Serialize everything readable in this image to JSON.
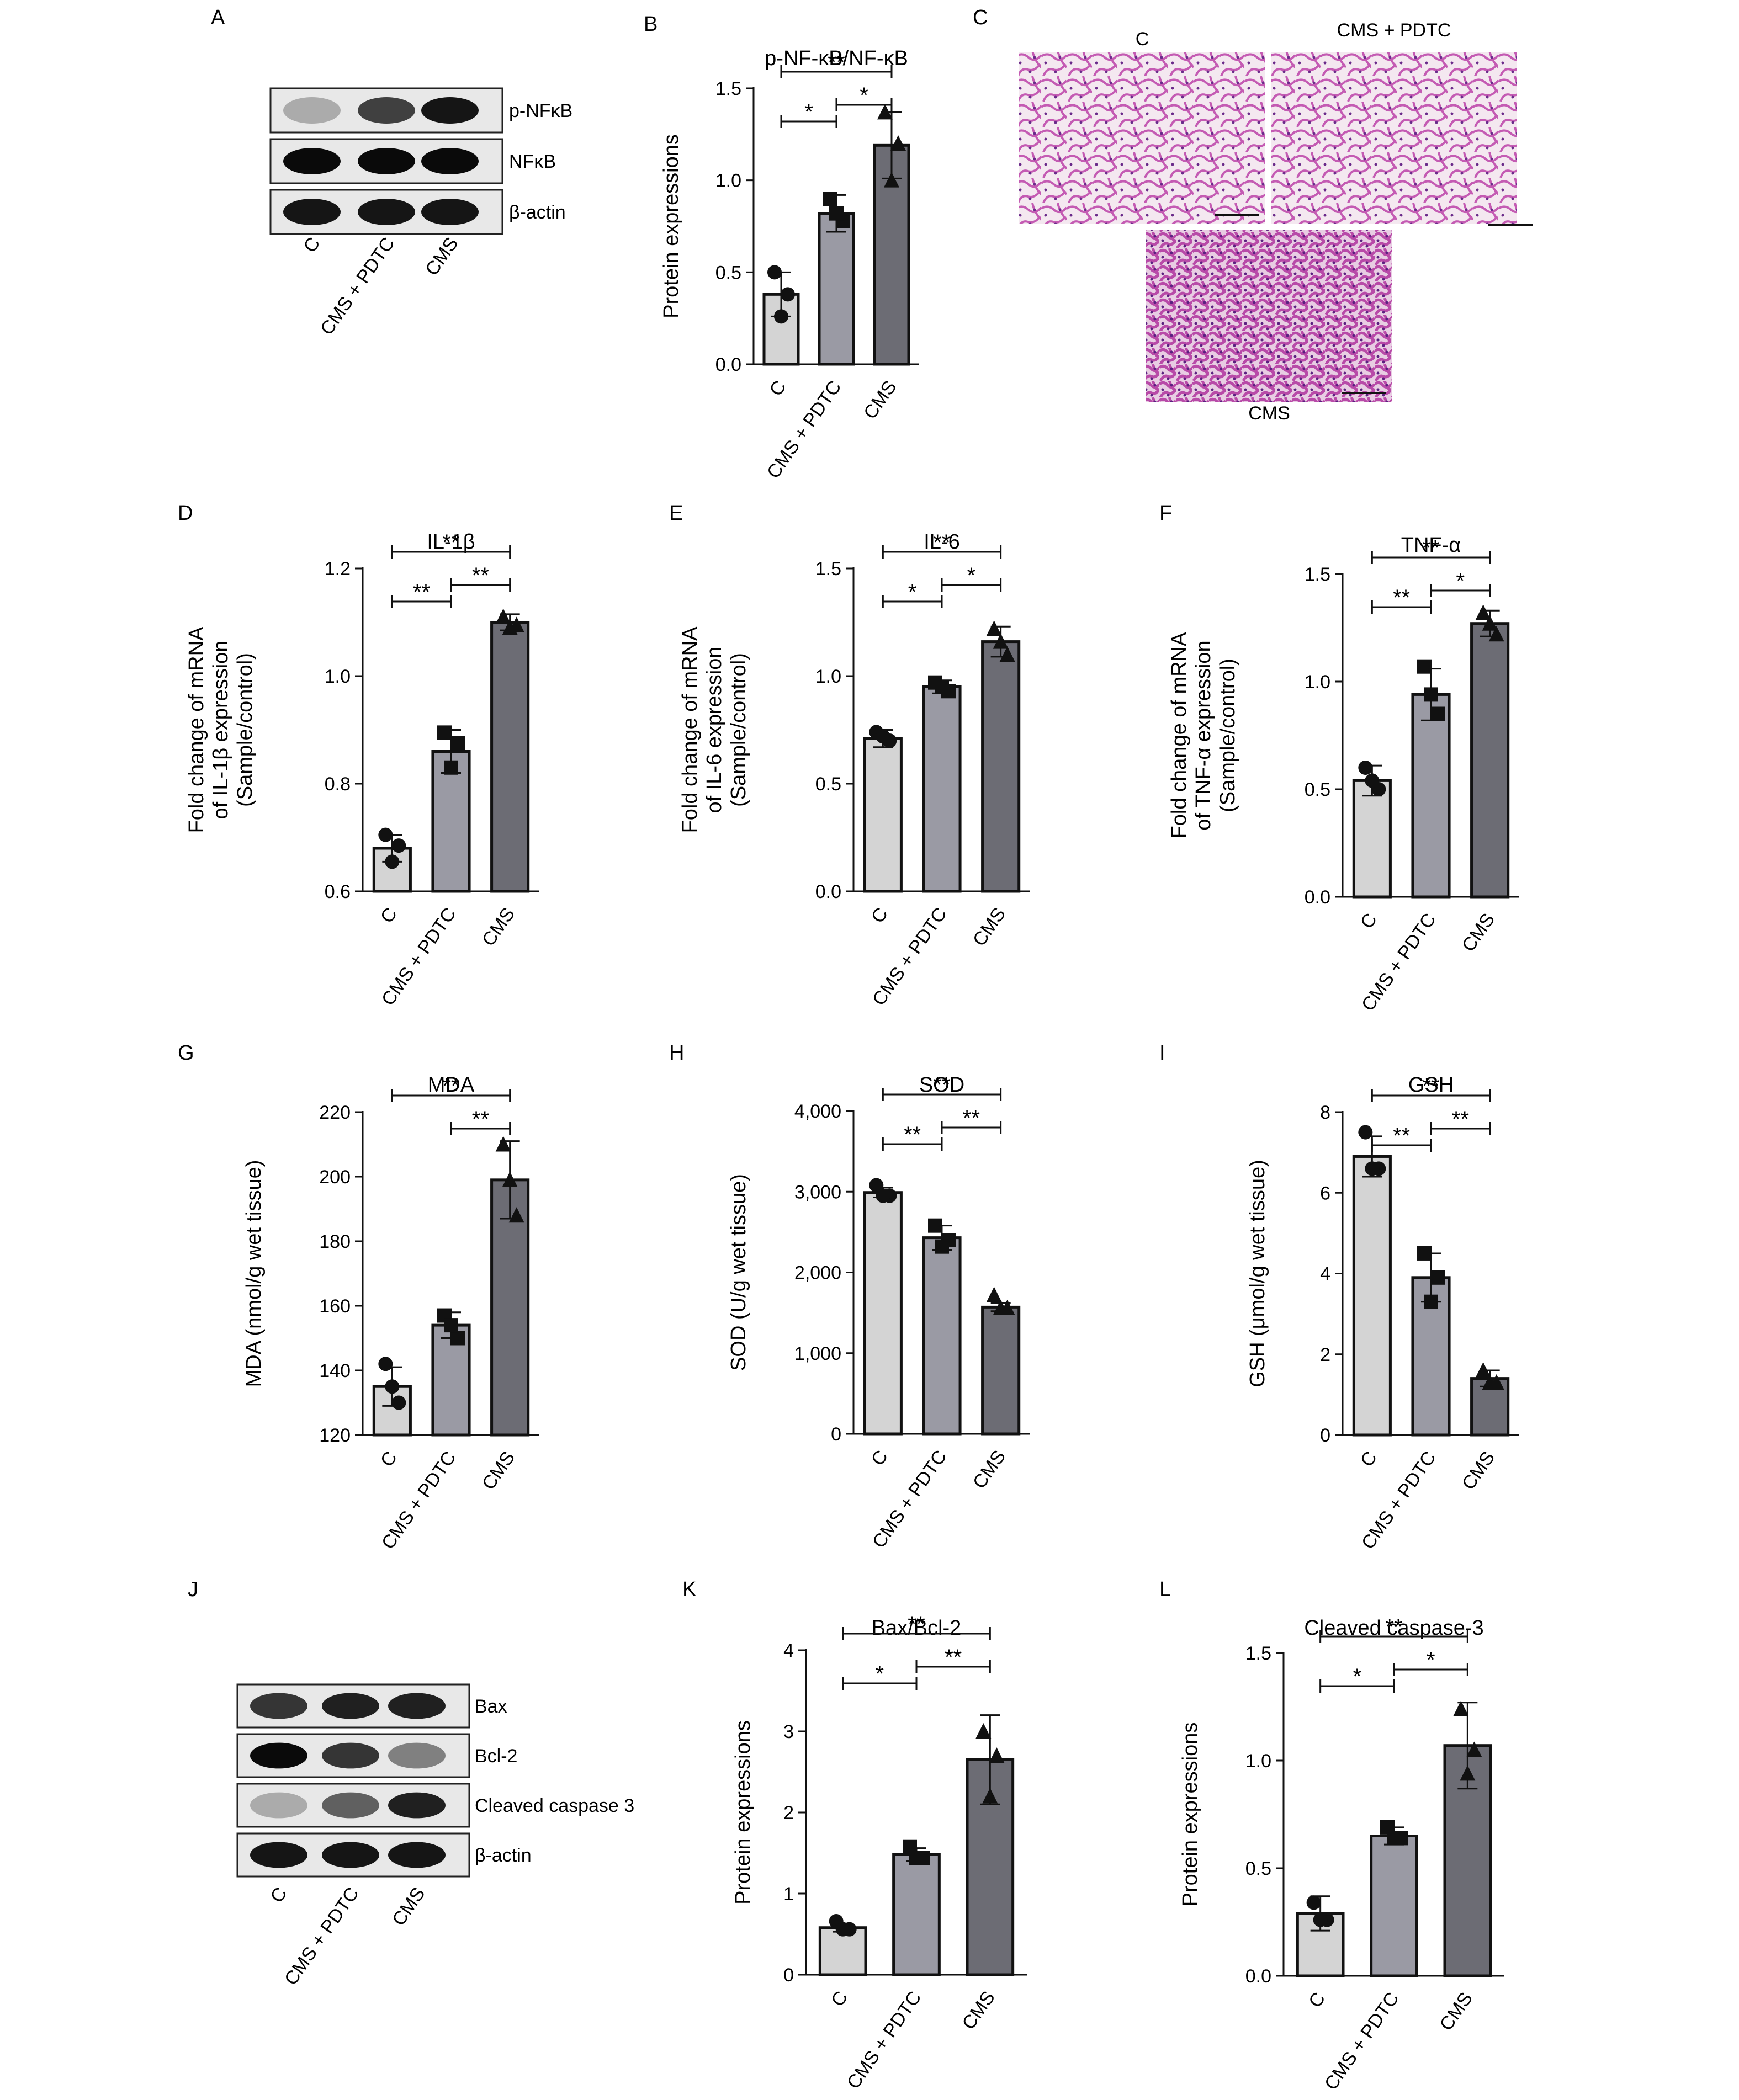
{
  "panel_letters": {
    "A": "A",
    "B": "B",
    "C": "C",
    "D": "D",
    "E": "E",
    "F": "F",
    "G": "G",
    "H": "H",
    "I": "I",
    "J": "J",
    "K": "K",
    "L": "L"
  },
  "blot_A": {
    "bands": [
      "p-NFκB",
      "NFκB",
      "β-actin"
    ],
    "lanes": [
      "C",
      "CMS + PDTC",
      "CMS"
    ],
    "intensity": [
      [
        0.25,
        0.75,
        0.95
      ],
      [
        1.0,
        1.0,
        1.0
      ],
      [
        0.95,
        0.95,
        0.95
      ]
    ]
  },
  "blot_J": {
    "bands": [
      "Bax",
      "Bcl-2",
      "Cleaved caspase 3",
      "β-actin"
    ],
    "lanes": [
      "C",
      "CMS + PDTC",
      "CMS"
    ],
    "intensity": [
      [
        0.8,
        0.9,
        0.9
      ],
      [
        1.0,
        0.8,
        0.45
      ],
      [
        0.25,
        0.6,
        0.9
      ],
      [
        0.95,
        0.95,
        0.95
      ]
    ]
  },
  "histology": {
    "labels": [
      "C",
      "CMS + PDTC",
      "CMS"
    ],
    "tissue_color": "#c65bb5",
    "background_color": "#f2e4ee"
  },
  "colors": {
    "bar_c": "#d4d4d4",
    "bar_pdtc": "#9a9aa4",
    "bar_cms": "#6c6c74",
    "outline": "#111111"
  },
  "chart_data": [
    {
      "id": "B",
      "type": "bar",
      "title": "p-NF-κB/NF-κB",
      "ylabel": "Protein expressions",
      "categories": [
        "C",
        "CMS + PDTC",
        "CMS"
      ],
      "values": [
        0.38,
        0.82,
        1.19
      ],
      "errors": [
        0.12,
        0.1,
        0.18
      ],
      "ylim": [
        0,
        1.5
      ],
      "yticks": [
        "0.0",
        "0.5",
        "1.0",
        "1.5"
      ],
      "points": [
        [
          0.5,
          0.38,
          0.26
        ],
        [
          0.9,
          0.78,
          0.82
        ],
        [
          1.37,
          1.2,
          1.0
        ]
      ],
      "sig": [
        {
          "from": 0,
          "to": 1,
          "label": "*"
        },
        {
          "from": 1,
          "to": 2,
          "label": "*"
        },
        {
          "from": 0,
          "to": 2,
          "label": "**"
        }
      ]
    },
    {
      "id": "D",
      "type": "bar",
      "title": "IL-1β",
      "ylabel": [
        "Fold change of mRNA",
        "of IL-1β expression",
        "(Sample/control)"
      ],
      "categories": [
        "C",
        "CMS + PDTC",
        "CMS"
      ],
      "values": [
        0.68,
        0.86,
        1.1
      ],
      "errors": [
        0.025,
        0.04,
        0.015
      ],
      "ylim": [
        0.6,
        1.2
      ],
      "yticks": [
        "0.6",
        "0.8",
        "1.0",
        "1.2"
      ],
      "points": [
        [
          0.705,
          0.685,
          0.655
        ],
        [
          0.895,
          0.875,
          0.83
        ],
        [
          1.11,
          1.095,
          1.09
        ]
      ],
      "sig": [
        {
          "from": 0,
          "to": 1,
          "label": "**"
        },
        {
          "from": 1,
          "to": 2,
          "label": "**"
        },
        {
          "from": 0,
          "to": 2,
          "label": "**"
        }
      ]
    },
    {
      "id": "E",
      "type": "bar",
      "title": "IL-6",
      "ylabel": [
        "Fold change of mRNA",
        "of IL-6 expression",
        "(Sample/control)"
      ],
      "categories": [
        "C",
        "CMS + PDTC",
        "CMS"
      ],
      "values": [
        0.71,
        0.95,
        1.16
      ],
      "errors": [
        0.04,
        0.03,
        0.07
      ],
      "ylim": [
        0,
        1.5
      ],
      "yticks": [
        "0.0",
        "0.5",
        "1.0",
        "1.5"
      ],
      "points": [
        [
          0.74,
          0.7,
          0.72
        ],
        [
          0.97,
          0.93,
          0.95
        ],
        [
          1.22,
          1.1,
          1.16
        ]
      ],
      "sig": [
        {
          "from": 0,
          "to": 1,
          "label": "*"
        },
        {
          "from": 1,
          "to": 2,
          "label": "*"
        },
        {
          "from": 0,
          "to": 2,
          "label": "**"
        }
      ]
    },
    {
      "id": "F",
      "type": "bar",
      "title": "TNF-α",
      "ylabel": [
        "Fold change of mRNA",
        "of TNF-α expression",
        "(Sample/control)"
      ],
      "categories": [
        "C",
        "CMS + PDTC",
        "CMS"
      ],
      "values": [
        0.54,
        0.94,
        1.27
      ],
      "errors": [
        0.07,
        0.12,
        0.06
      ],
      "ylim": [
        0,
        1.5
      ],
      "yticks": [
        "0.0",
        "0.5",
        "1.0",
        "1.5"
      ],
      "points": [
        [
          0.6,
          0.5,
          0.54
        ],
        [
          1.07,
          0.85,
          0.94
        ],
        [
          1.32,
          1.22,
          1.27
        ]
      ],
      "sig": [
        {
          "from": 0,
          "to": 1,
          "label": "**"
        },
        {
          "from": 1,
          "to": 2,
          "label": "*"
        },
        {
          "from": 0,
          "to": 2,
          "label": "**"
        }
      ]
    },
    {
      "id": "G",
      "type": "bar",
      "title": "MDA",
      "ylabel": "MDA (nmol/g wet tissue)",
      "categories": [
        "C",
        "CMS + PDTC",
        "CMS"
      ],
      "values": [
        135,
        154,
        199
      ],
      "errors": [
        6,
        4,
        12
      ],
      "ylim": [
        120,
        220
      ],
      "yticks": [
        "120",
        "140",
        "160",
        "180",
        "200",
        "220"
      ],
      "points": [
        [
          142,
          130,
          135
        ],
        [
          157,
          150,
          154
        ],
        [
          210,
          188,
          199
        ]
      ],
      "sig": [
        {
          "from": 1,
          "to": 2,
          "label": "**"
        },
        {
          "from": 0,
          "to": 2,
          "label": "**"
        }
      ]
    },
    {
      "id": "H",
      "type": "bar",
      "title": "SOD",
      "ylabel": "SOD (U/g wet tissue)",
      "categories": [
        "C",
        "CMS + PDTC",
        "CMS"
      ],
      "values": [
        2990,
        2430,
        1570
      ],
      "errors": [
        60,
        150,
        50
      ],
      "ylim": [
        0,
        4000
      ],
      "yticks": [
        "0",
        "1,000",
        "2,000",
        "3,000",
        "4,000"
      ],
      "points": [
        [
          3080,
          2950,
          2950
        ],
        [
          2580,
          2400,
          2320
        ],
        [
          1720,
          1560,
          1560
        ]
      ],
      "sig": [
        {
          "from": 0,
          "to": 1,
          "label": "**"
        },
        {
          "from": 1,
          "to": 2,
          "label": "**"
        },
        {
          "from": 0,
          "to": 2,
          "label": "**"
        }
      ]
    },
    {
      "id": "I",
      "type": "bar",
      "title": "GSH",
      "ylabel": "GSH (μmol/g wet tissue)",
      "categories": [
        "C",
        "CMS + PDTC",
        "CMS"
      ],
      "values": [
        6.9,
        3.9,
        1.4
      ],
      "errors": [
        0.5,
        0.6,
        0.2
      ],
      "ylim": [
        0,
        8
      ],
      "yticks": [
        "0",
        "2",
        "4",
        "6",
        "8"
      ],
      "points": [
        [
          7.5,
          6.6,
          6.6
        ],
        [
          4.5,
          3.9,
          3.3
        ],
        [
          1.6,
          1.3,
          1.3
        ]
      ],
      "sig": [
        {
          "from": 0,
          "to": 1,
          "label": "**"
        },
        {
          "from": 1,
          "to": 2,
          "label": "**"
        },
        {
          "from": 0,
          "to": 2,
          "label": "**"
        }
      ]
    },
    {
      "id": "K",
      "type": "bar",
      "title": "Bax/Bcl-2",
      "ylabel": "Protein expressions",
      "categories": [
        "C",
        "CMS + PDTC",
        "CMS"
      ],
      "values": [
        0.58,
        1.48,
        2.65
      ],
      "errors": [
        0.05,
        0.08,
        0.55
      ],
      "ylim": [
        0,
        4
      ],
      "yticks": [
        "0",
        "1",
        "2",
        "3",
        "4"
      ],
      "points": [
        [
          0.66,
          0.56,
          0.56
        ],
        [
          1.58,
          1.44,
          1.44
        ],
        [
          3.0,
          2.7,
          2.2
        ]
      ],
      "sig": [
        {
          "from": 0,
          "to": 1,
          "label": "*"
        },
        {
          "from": 1,
          "to": 2,
          "label": "**"
        },
        {
          "from": 0,
          "to": 2,
          "label": "**"
        }
      ]
    },
    {
      "id": "L",
      "type": "bar",
      "title": "Cleaved caspase-3",
      "ylabel": "Protein expressions",
      "categories": [
        "C",
        "CMS + PDTC",
        "CMS"
      ],
      "values": [
        0.29,
        0.65,
        1.07
      ],
      "errors": [
        0.08,
        0.04,
        0.2
      ],
      "ylim": [
        0,
        1.5
      ],
      "yticks": [
        "0.0",
        "0.5",
        "1.0",
        "1.5"
      ],
      "points": [
        [
          0.34,
          0.26,
          0.26
        ],
        [
          0.69,
          0.64,
          0.64
        ],
        [
          1.24,
          1.05,
          0.94
        ]
      ],
      "sig": [
        {
          "from": 0,
          "to": 1,
          "label": "*"
        },
        {
          "from": 1,
          "to": 2,
          "label": "*"
        },
        {
          "from": 0,
          "to": 2,
          "label": "**"
        }
      ]
    }
  ]
}
